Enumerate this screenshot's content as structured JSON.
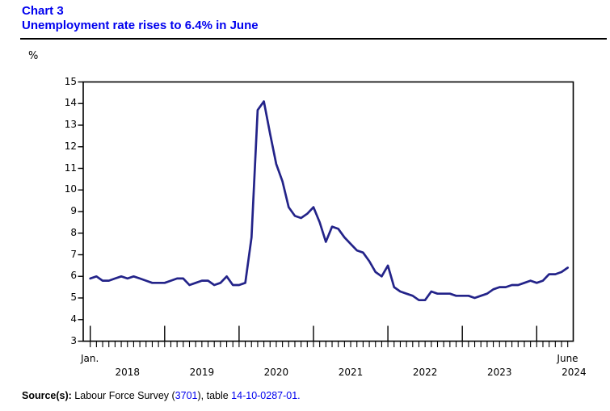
{
  "header": {
    "chart_label": "Chart 3",
    "title": "Unemployment rate rises to 6.4% in June"
  },
  "colors": {
    "title_blue": "#0000EE",
    "link_blue": "#0000EE",
    "line_navy": "#232389",
    "axis_black": "#000000"
  },
  "y_axis": {
    "unit_label": "%",
    "ticks": [
      15,
      14,
      13,
      12,
      11,
      10,
      9,
      8,
      7,
      6,
      5,
      4,
      3
    ]
  },
  "x_axis": {
    "first_tick_label": "Jan.",
    "last_tick_label": "June",
    "years": [
      "2018",
      "2019",
      "2020",
      "2021",
      "2022",
      "2023",
      "2024"
    ]
  },
  "source": {
    "prefix": "Source(s):",
    "text1": " Labour Force Survey (",
    "link1": "3701",
    "text2": "), table ",
    "link2": "14-10-0287-01."
  },
  "chart_data": {
    "type": "line",
    "title": "Unemployment rate rises to 6.4% in June",
    "ylabel": "%",
    "ylim": [
      3,
      15
    ],
    "grid": false,
    "legend": "none",
    "series_name": "Unemployment rate",
    "x": [
      "2018-01",
      "2018-02",
      "2018-03",
      "2018-04",
      "2018-05",
      "2018-06",
      "2018-07",
      "2018-08",
      "2018-09",
      "2018-10",
      "2018-11",
      "2018-12",
      "2019-01",
      "2019-02",
      "2019-03",
      "2019-04",
      "2019-05",
      "2019-06",
      "2019-07",
      "2019-08",
      "2019-09",
      "2019-10",
      "2019-11",
      "2019-12",
      "2020-01",
      "2020-02",
      "2020-03",
      "2020-04",
      "2020-05",
      "2020-06",
      "2020-07",
      "2020-08",
      "2020-09",
      "2020-10",
      "2020-11",
      "2020-12",
      "2021-01",
      "2021-02",
      "2021-03",
      "2021-04",
      "2021-05",
      "2021-06",
      "2021-07",
      "2021-08",
      "2021-09",
      "2021-10",
      "2021-11",
      "2021-12",
      "2022-01",
      "2022-02",
      "2022-03",
      "2022-04",
      "2022-05",
      "2022-06",
      "2022-07",
      "2022-08",
      "2022-09",
      "2022-10",
      "2022-11",
      "2022-12",
      "2023-01",
      "2023-02",
      "2023-03",
      "2023-04",
      "2023-05",
      "2023-06",
      "2023-07",
      "2023-08",
      "2023-09",
      "2023-10",
      "2023-11",
      "2023-12",
      "2024-01",
      "2024-02",
      "2024-03",
      "2024-04",
      "2024-05",
      "2024-06"
    ],
    "values": [
      5.9,
      6.0,
      5.8,
      5.8,
      5.9,
      6.0,
      5.9,
      6.0,
      5.9,
      5.8,
      5.7,
      5.7,
      5.7,
      5.8,
      5.9,
      5.9,
      5.6,
      5.7,
      5.8,
      5.8,
      5.6,
      5.7,
      6.0,
      5.6,
      5.6,
      5.7,
      7.8,
      13.7,
      14.1,
      12.6,
      11.2,
      10.4,
      9.2,
      8.8,
      8.7,
      8.9,
      9.2,
      8.5,
      7.6,
      8.3,
      8.2,
      7.8,
      7.5,
      7.2,
      7.1,
      6.7,
      6.2,
      6.0,
      6.5,
      5.5,
      5.3,
      5.2,
      5.1,
      4.9,
      4.9,
      5.3,
      5.2,
      5.2,
      5.2,
      5.1,
      5.1,
      5.1,
      5.0,
      5.1,
      5.2,
      5.4,
      5.5,
      5.5,
      5.6,
      5.6,
      5.7,
      5.8,
      5.7,
      5.8,
      6.1,
      6.1,
      6.2,
      6.4
    ]
  }
}
